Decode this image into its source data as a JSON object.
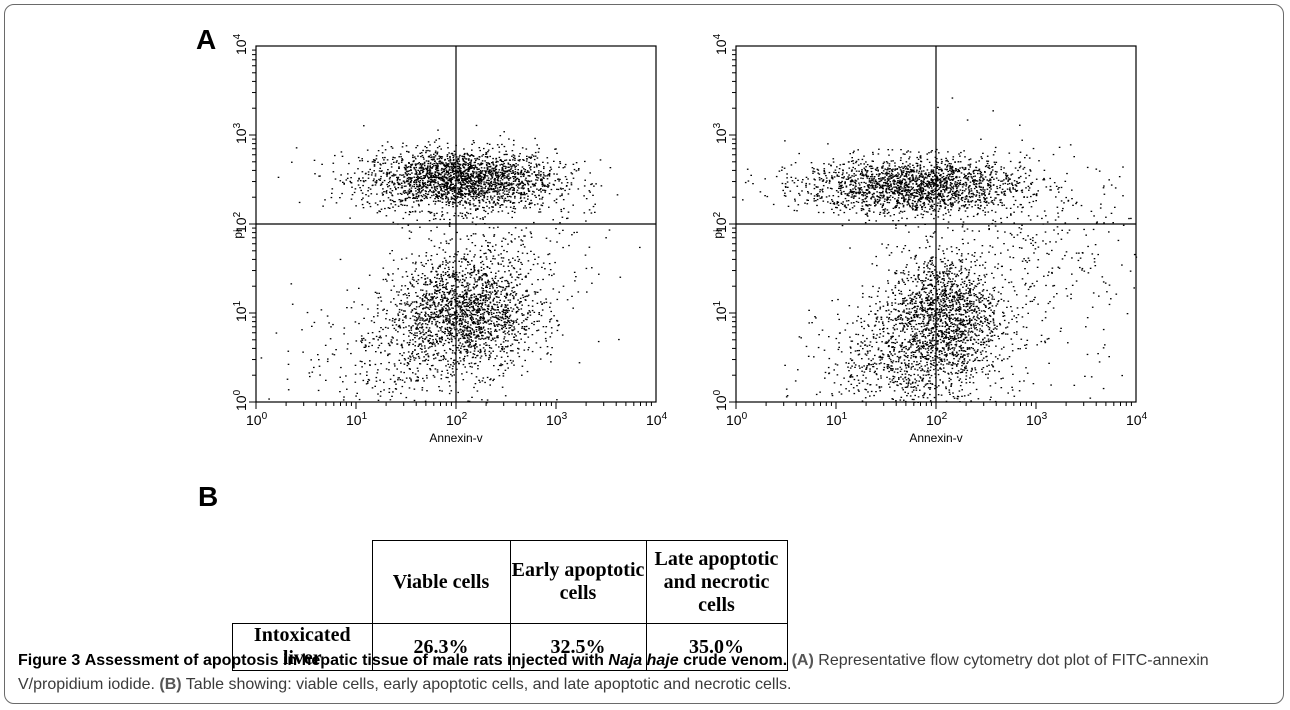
{
  "panels": {
    "a": "A",
    "b": "B"
  },
  "chart_data": [
    {
      "type": "scatter",
      "title": "",
      "xlabel": "Annexin-v",
      "ylabel": "pi",
      "x_scale": "log",
      "y_scale": "log",
      "xlim": [
        1,
        10000
      ],
      "ylim": [
        1,
        10000
      ],
      "x_ticks": [
        "10",
        "10",
        "10",
        "10",
        "10"
      ],
      "x_tick_exponents": [
        "0",
        "1",
        "2",
        "3",
        "4"
      ],
      "y_ticks": [
        "10",
        "10",
        "10",
        "10",
        "10"
      ],
      "y_tick_exponents": [
        "0",
        "1",
        "2",
        "3",
        "4"
      ],
      "quadrant_lines": {
        "x": 100,
        "y": 100
      },
      "clusters": [
        {
          "center": [
            105,
            320
          ],
          "spread_log": [
            0.48,
            0.17
          ],
          "count": 2300
        },
        {
          "center": [
            120,
            10
          ],
          "spread_log": [
            0.36,
            0.32
          ],
          "count": 1900
        },
        {
          "center": [
            25,
            3
          ],
          "spread_log": [
            0.5,
            0.4
          ],
          "count": 350
        },
        {
          "center": [
            400,
            60
          ],
          "spread_log": [
            0.45,
            0.45
          ],
          "count": 250
        }
      ]
    },
    {
      "type": "scatter",
      "title": "",
      "xlabel": "Annexin-v",
      "ylabel": "pi",
      "x_scale": "log",
      "y_scale": "log",
      "xlim": [
        1,
        10000
      ],
      "ylim": [
        1,
        10000
      ],
      "x_ticks": [
        "10",
        "10",
        "10",
        "10",
        "10"
      ],
      "x_tick_exponents": [
        "0",
        "1",
        "2",
        "3",
        "4"
      ],
      "y_ticks": [
        "10",
        "10",
        "10",
        "10",
        "10"
      ],
      "y_tick_exponents": [
        "0",
        "1",
        "2",
        "3",
        "4"
      ],
      "quadrant_lines": {
        "x": 100,
        "y": 100
      },
      "clusters": [
        {
          "center": [
            60,
            270
          ],
          "spread_log": [
            0.55,
            0.16
          ],
          "count": 2000
        },
        {
          "center": [
            120,
            10
          ],
          "spread_log": [
            0.28,
            0.35
          ],
          "count": 1400
        },
        {
          "center": [
            55,
            3
          ],
          "spread_log": [
            0.45,
            0.35
          ],
          "count": 900
        },
        {
          "center": [
            800,
            40
          ],
          "spread_log": [
            0.6,
            0.6
          ],
          "count": 400
        }
      ]
    }
  ],
  "table": {
    "headers": [
      "Viable cells",
      "Early apoptotic cells",
      "Late apoptotic and necrotic cells"
    ],
    "header_lines": [
      [
        "Viable cells"
      ],
      [
        "Early apoptotic",
        "cells"
      ],
      [
        "Late apoptotic",
        "and necrotic",
        "cells"
      ]
    ],
    "rows": [
      {
        "label": "Intoxicated liver",
        "values": [
          "26.3%",
          "32.5%",
          "35.0%"
        ]
      }
    ]
  },
  "caption": {
    "fig_label": "Figure 3",
    "title_part1": "Assessment of apoptosis in hepatic tissue of male rats injected with",
    "title_species": "Naja haje",
    "title_part2": "crude venom.",
    "ref_a": "(A)",
    "text_a": "Representative flow cytometry dot plot of FITC-annexin V/propidium iodide.",
    "ref_b": "(B)",
    "text_b": "Table showing: viable cells, early apoptotic cells, and late apoptotic and necrotic cells."
  }
}
